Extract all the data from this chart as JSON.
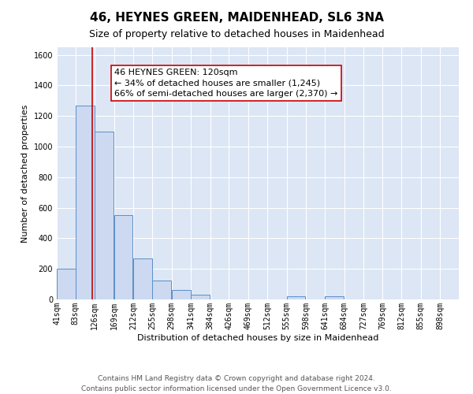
{
  "title": "46, HEYNES GREEN, MAIDENHEAD, SL6 3NA",
  "subtitle": "Size of property relative to detached houses in Maidenhead",
  "xlabel": "Distribution of detached houses by size in Maidenhead",
  "ylabel": "Number of detached properties",
  "bin_edges": [
    41,
    83,
    126,
    169,
    212,
    255,
    298,
    341,
    384,
    426,
    469,
    512,
    555,
    598,
    641,
    684,
    727,
    769,
    812,
    855,
    898
  ],
  "bin_labels": [
    "41sqm",
    "83sqm",
    "126sqm",
    "169sqm",
    "212sqm",
    "255sqm",
    "298sqm",
    "341sqm",
    "384sqm",
    "426sqm",
    "469sqm",
    "512sqm",
    "555sqm",
    "598sqm",
    "641sqm",
    "684sqm",
    "727sqm",
    "769sqm",
    "812sqm",
    "855sqm",
    "898sqm"
  ],
  "counts": [
    200,
    1270,
    1100,
    550,
    270,
    125,
    60,
    30,
    0,
    0,
    0,
    0,
    20,
    0,
    20,
    0,
    0,
    0,
    0,
    0
  ],
  "bar_color": "#ccd9f0",
  "bar_edge_color": "#5b8fc9",
  "property_size": 120,
  "property_line_color": "#cc0000",
  "annotation_line1": "46 HEYNES GREEN: 120sqm",
  "annotation_line2": "← 34% of detached houses are smaller (1,245)",
  "annotation_line3": "66% of semi-detached houses are larger (2,370) →",
  "annotation_box_edge_color": "#cc0000",
  "annotation_box_face_color": "#ffffff",
  "ylim": [
    0,
    1650
  ],
  "yticks": [
    0,
    200,
    400,
    600,
    800,
    1000,
    1200,
    1400,
    1600
  ],
  "background_color": "#dce6f5",
  "footer_line1": "Contains HM Land Registry data © Crown copyright and database right 2024.",
  "footer_line2": "Contains public sector information licensed under the Open Government Licence v3.0.",
  "title_fontsize": 11,
  "subtitle_fontsize": 9,
  "axis_label_fontsize": 8,
  "tick_fontsize": 7,
  "annotation_fontsize": 8,
  "footer_fontsize": 6.5
}
